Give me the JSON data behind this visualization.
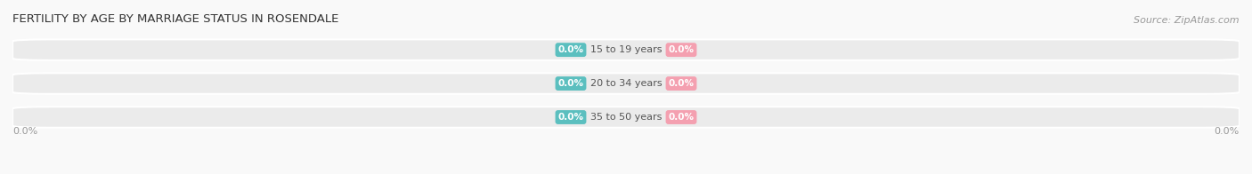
{
  "title": "FERTILITY BY AGE BY MARRIAGE STATUS IN ROSENDALE",
  "source": "Source: ZipAtlas.com",
  "categories": [
    "15 to 19 years",
    "20 to 34 years",
    "35 to 50 years"
  ],
  "married_values": [
    0.0,
    0.0,
    0.0
  ],
  "unmarried_values": [
    0.0,
    0.0,
    0.0
  ],
  "married_color": "#5bbfbf",
  "unmarried_color": "#f4a0b0",
  "bar_bg_color": "#e8e8e8",
  "title_fontsize": 9.5,
  "source_fontsize": 8,
  "label_fontsize": 7.5,
  "category_fontsize": 8,
  "legend_fontsize": 8.5,
  "left_axis_label": "0.0%",
  "right_axis_label": "0.0%",
  "background_color": "#f9f9f9",
  "bar_area_color": "#ebebeb"
}
